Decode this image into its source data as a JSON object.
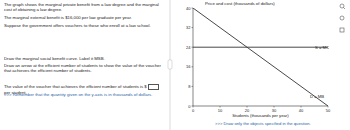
{
  "question": {
    "paragraphs": [
      "The graph shows the marginal private benefit from a law degree and the marginal cost of obtaining a law degree.",
      "The marginal external benefit is $16,000 per law graduate per year.",
      "Suppose the government offers vouchers to those who enroll at a law school."
    ],
    "instructions": [
      "Draw the marginal social benefit curve. Label it MSB.",
      "Draw an arrow at the efficient number of students to show the value of the voucher that achieves the efficient number of students."
    ],
    "answer": {
      "before": "The value of the voucher that achieves the efficient number of students is $",
      "after": "per student."
    },
    "hint": ">>> Remember that the quantity given on the y-axis is in thousands of dollars."
  },
  "chart_data": {
    "type": "line",
    "title": "Price and cost (thousands of dollars)",
    "x_label": "Students (thousands per year)",
    "note": ">>> Draw only the objects specified in the question.",
    "x": [
      0,
      50
    ],
    "series": [
      {
        "name": "D = MB",
        "color": "#333333",
        "values": [
          40,
          0
        ]
      },
      {
        "name": "S = MC",
        "color": "#333333",
        "values": [
          24,
          24
        ]
      }
    ],
    "xlim": [
      0,
      50
    ],
    "ylim": [
      0,
      40
    ],
    "xticks": [
      0,
      10,
      20,
      30,
      40,
      50
    ],
    "yticks": [
      0,
      8,
      16,
      24,
      32,
      40
    ],
    "grid": false
  }
}
